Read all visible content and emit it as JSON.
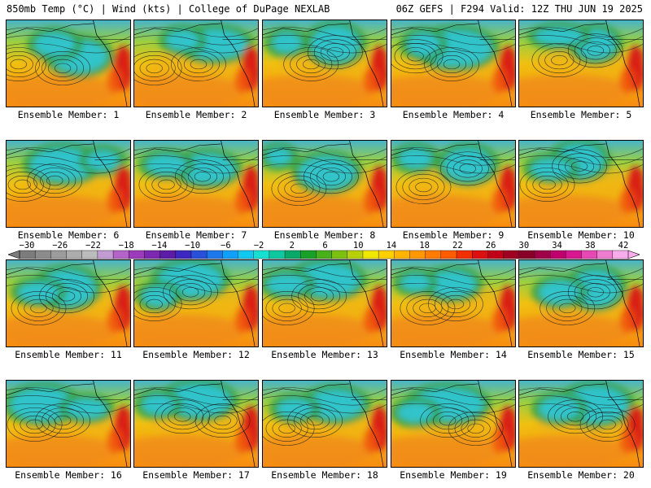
{
  "header": {
    "left": "850mb Temp (°C) | Wind (kts) | College of DuPage NEXLAB",
    "right": "06Z GEFS | F294 Valid: 12Z THU JUN 19 2025"
  },
  "members": [
    {
      "label": "Ensemble Member: 1",
      "blue": [
        [
          90,
          45,
          35,
          20
        ],
        [
          60,
          30,
          25,
          14
        ]
      ],
      "lows": [
        [
          70,
          60
        ],
        [
          15,
          55
        ]
      ]
    },
    {
      "label": "Ensemble Member: 2",
      "blue": [
        [
          100,
          30,
          40,
          18
        ],
        [
          60,
          25,
          20,
          12
        ]
      ],
      "lows": [
        [
          80,
          55
        ],
        [
          25,
          60
        ]
      ]
    },
    {
      "label": "Ensemble Member: 3",
      "blue": [
        [
          90,
          30,
          30,
          22
        ],
        [
          30,
          28,
          18,
          12
        ]
      ],
      "lows": [
        [
          60,
          55
        ],
        [
          90,
          40
        ]
      ]
    },
    {
      "label": "Ensemble Member: 4",
      "blue": [
        [
          80,
          35,
          45,
          22
        ],
        [
          40,
          30,
          20,
          14
        ]
      ],
      "lows": [
        [
          75,
          55
        ],
        [
          30,
          45
        ]
      ]
    },
    {
      "label": "Ensemble Member: 5",
      "blue": [
        [
          95,
          30,
          25,
          18
        ],
        [
          50,
          20,
          30,
          10
        ]
      ],
      "lows": [
        [
          95,
          38
        ],
        [
          50,
          50
        ]
      ]
    },
    {
      "label": "Ensemble Member: 6",
      "blue": [
        [
          70,
          30,
          40,
          20
        ],
        [
          120,
          25,
          20,
          12
        ]
      ],
      "lows": [
        [
          60,
          50
        ],
        [
          20,
          55
        ]
      ]
    },
    {
      "label": "Ensemble Member: 7",
      "blue": [
        [
          90,
          35,
          35,
          18
        ],
        [
          40,
          30,
          25,
          12
        ]
      ],
      "lows": [
        [
          85,
          45
        ],
        [
          40,
          55
        ]
      ]
    },
    {
      "label": "Ensemble Member: 8",
      "blue": [
        [
          80,
          40,
          35,
          20
        ],
        [
          20,
          20,
          15,
          10
        ]
      ],
      "lows": [
        [
          85,
          45
        ],
        [
          45,
          60
        ]
      ]
    },
    {
      "label": "Ensemble Member: 9",
      "blue": [
        [
          95,
          30,
          30,
          20
        ],
        [
          30,
          22,
          20,
          12
        ]
      ],
      "lows": [
        [
          95,
          35
        ],
        [
          40,
          58
        ]
      ]
    },
    {
      "label": "Ensemble Member: 10",
      "blue": [
        [
          75,
          25,
          30,
          20
        ],
        [
          40,
          35,
          25,
          12
        ]
      ],
      "lows": [
        [
          75,
          32
        ],
        [
          35,
          55
        ]
      ]
    },
    {
      "label": "Ensemble Member: 11",
      "blue": [
        [
          75,
          35,
          35,
          22
        ],
        [
          40,
          40,
          25,
          12
        ]
      ],
      "lows": [
        [
          75,
          45
        ],
        [
          40,
          60
        ]
      ]
    },
    {
      "label": "Ensemble Member: 12",
      "blue": [
        [
          70,
          25,
          40,
          20
        ],
        [
          30,
          45,
          20,
          12
        ]
      ],
      "lows": [
        [
          70,
          40
        ],
        [
          25,
          55
        ]
      ]
    },
    {
      "label": "Ensemble Member: 13",
      "blue": [
        [
          80,
          25,
          40,
          20
        ],
        [
          30,
          30,
          25,
          12
        ]
      ],
      "lows": [
        [
          70,
          45
        ],
        [
          30,
          60
        ]
      ]
    },
    {
      "label": "Ensemble Member: 14",
      "blue": [
        [
          75,
          30,
          30,
          16
        ],
        [
          30,
          28,
          18,
          10
        ]
      ],
      "lows": [
        [
          80,
          55
        ],
        [
          45,
          60
        ]
      ]
    },
    {
      "label": "Ensemble Member: 15",
      "blue": [
        [
          95,
          35,
          30,
          22
        ],
        [
          50,
          40,
          25,
          14
        ]
      ],
      "lows": [
        [
          95,
          40
        ],
        [
          60,
          60
        ]
      ]
    },
    {
      "label": "Ensemble Member: 16",
      "blue": [
        [
          45,
          30,
          40,
          20
        ],
        [
          100,
          35,
          25,
          12
        ]
      ],
      "lows": [
        [
          70,
          50
        ],
        [
          35,
          55
        ]
      ]
    },
    {
      "label": "Ensemble Member: 17",
      "blue": [
        [
          80,
          25,
          40,
          20
        ],
        [
          30,
          30,
          20,
          12
        ]
      ],
      "lows": [
        [
          60,
          45
        ],
        [
          110,
          50
        ]
      ]
    },
    {
      "label": "Ensemble Member: 18",
      "blue": [
        [
          90,
          30,
          35,
          18
        ],
        [
          40,
          35,
          22,
          12
        ]
      ],
      "lows": [
        [
          65,
          50
        ],
        [
          30,
          60
        ]
      ]
    },
    {
      "label": "Ensemble Member: 19",
      "blue": [
        [
          70,
          30,
          45,
          20
        ],
        [
          30,
          40,
          22,
          12
        ]
      ],
      "lows": [
        [
          70,
          50
        ],
        [
          105,
          60
        ]
      ]
    },
    {
      "label": "Ensemble Member: 20",
      "blue": [
        [
          95,
          30,
          40,
          22
        ],
        [
          50,
          35,
          25,
          14
        ]
      ],
      "lows": [
        [
          70,
          45
        ],
        [
          110,
          55
        ]
      ]
    }
  ],
  "colorbar": {
    "ticks": [
      "-30",
      "-26",
      "-22",
      "-18",
      "-14",
      "-10",
      "-6",
      "-2",
      "2",
      "6",
      "10",
      "14",
      "18",
      "22",
      "26",
      "30",
      "34",
      "38",
      "42"
    ],
    "colors": [
      "#7c7c7c",
      "#8c8c8c",
      "#9c9c9c",
      "#acacac",
      "#bcbcbc",
      "#c49cd4",
      "#b464c8",
      "#9c3cbc",
      "#7c28b0",
      "#5c1ca8",
      "#3c28c0",
      "#2850d8",
      "#1c78ec",
      "#10a0f8",
      "#10c8f0",
      "#18e0d0",
      "#10c8a0",
      "#08a868",
      "#18a028",
      "#48b018",
      "#7cc010",
      "#b8d008",
      "#f0e800",
      "#ffd000",
      "#ffb400",
      "#ff9800",
      "#ff7c00",
      "#ff5c00",
      "#f03000",
      "#dc1010",
      "#c00018",
      "#a00020",
      "#880028",
      "#a00048",
      "#c0006c",
      "#d81890",
      "#e848b4",
      "#f07cd0",
      "#f8acec"
    ]
  }
}
